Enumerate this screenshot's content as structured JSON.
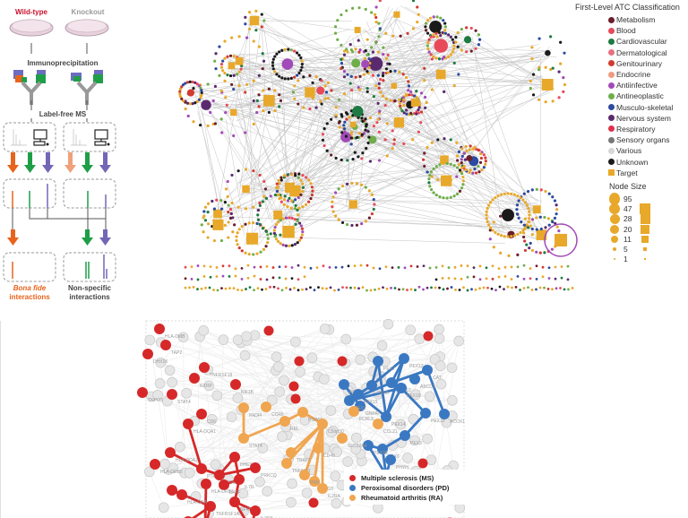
{
  "workflow": {
    "wildtype_label": "Wild-type",
    "knockout_label": "Knockout",
    "step1": "Immunoprecipitation",
    "step2": "Label-free MS",
    "result_left_line1": "Bona fide",
    "result_left_line2": "interactions",
    "result_right_line1": "Non-specific",
    "result_right_line2": "interactions",
    "colors": {
      "orange": "#e8631c",
      "light_orange": "#f0a07a",
      "green": "#1f9e48",
      "purple": "#7267b6",
      "red_label": "#c8102e",
      "gray_label": "#9a9a9a"
    }
  },
  "atc_legend": {
    "title": "First-Level ATC Classification",
    "items": [
      {
        "label": "Metabolism",
        "color": "#6b1e2a",
        "shape": "circle"
      },
      {
        "label": "Blood",
        "color": "#e84a5a",
        "shape": "circle"
      },
      {
        "label": "Cardiovascular",
        "color": "#1e7a42",
        "shape": "circle"
      },
      {
        "label": "Dermatological",
        "color": "#e87080",
        "shape": "circle"
      },
      {
        "label": "Genitourinary",
        "color": "#d23a30",
        "shape": "circle"
      },
      {
        "label": "Endocrine",
        "color": "#f09a80",
        "shape": "circle"
      },
      {
        "label": "Antiinfective",
        "color": "#a24ab8",
        "shape": "circle"
      },
      {
        "label": "Antineoplastic",
        "color": "#6fae4a",
        "shape": "circle"
      },
      {
        "label": "Musculo-skeletal",
        "color": "#2c4aa0",
        "shape": "circle"
      },
      {
        "label": "Nervous system",
        "color": "#5a2a6e",
        "shape": "circle"
      },
      {
        "label": "Respiratory",
        "color": "#e0304a",
        "shape": "circle"
      },
      {
        "label": "Sensory organs",
        "color": "#777777",
        "shape": "circle"
      },
      {
        "label": "Various",
        "color": "#d6d6d6",
        "shape": "circle"
      },
      {
        "label": "Unknown",
        "color": "#1a1a1a",
        "shape": "circle"
      },
      {
        "label": "Target",
        "color": "#e8a82a",
        "shape": "square"
      }
    ]
  },
  "node_size_legend": {
    "title": "Node Size",
    "rows": [
      {
        "value": "95",
        "circle": 14,
        "square": 0
      },
      {
        "value": "47",
        "circle": 12,
        "square": 12
      },
      {
        "value": "28",
        "circle": 11,
        "square": 11
      },
      {
        "value": "20",
        "circle": 10,
        "square": 10
      },
      {
        "value": "11",
        "circle": 8,
        "square": 8
      },
      {
        "value": "5",
        "circle": 4,
        "square": 4
      },
      {
        "value": "1",
        "circle": 2,
        "square": 2
      }
    ],
    "color": "#e8a82a"
  },
  "disease_legend": {
    "items": [
      {
        "label": "Multiple sclerosis (MS)",
        "color": "#d62828"
      },
      {
        "label": "Peroxisomal disorders (PD)",
        "color": "#3a78c2"
      },
      {
        "label": "Rheumatoid arthritis (RA)",
        "color": "#f0a550"
      }
    ]
  },
  "disease_network": {
    "ms_nodes": [
      "HLA-DQA1",
      "HLA-DQA2",
      "PTPRC",
      "VCAM1",
      "HHEX",
      "PRKCQ",
      "IL7R",
      "BATF",
      "NFKBIL1",
      "IL2RA",
      "PTK2",
      "TNFRSF1A",
      "MAPK3",
      "HLA-B",
      "HLA-C",
      "HLA-DRA",
      "HLA-DRB1",
      "HLA-DRB5",
      "HLA-DMB",
      "TAP2",
      "DHX16",
      "RXRP",
      "KIF1B",
      "TNFRSF18",
      "TNPO3",
      "CD6",
      "STAT4",
      "FCRL3",
      "CD58",
      "MERTK",
      "IL12A",
      "ANKRD55"
    ],
    "pd_nodes": [
      "AGPS",
      "GNPAT",
      "PEX2",
      "PEX12",
      "CAT",
      "PEX5",
      "PEX10",
      "ABCD1",
      "PEX19",
      "PEX7",
      "PEX14",
      "PEX13",
      "PEX16",
      "ACOX1",
      "PEX3",
      "PEX6",
      "PEX26",
      "PEX1",
      "PHYH"
    ],
    "ra_nodes": [
      "PADI4",
      "STAT4",
      "CCR6",
      "REL",
      "HSPA6",
      "C5orf30",
      "TRAF1",
      "CD40",
      "OLIG3",
      "TNFAIP3",
      "PRKL",
      "IL2RA",
      "FCRL3",
      "CCL21",
      "SLC22A4",
      "APOM",
      "RSBN1",
      "FAM107A",
      "TNFSF14",
      "PTPN22"
    ],
    "other_labels": [
      "ADRA1B",
      "SLC1SA2",
      "CFB",
      "PHF19",
      "C2",
      "AHI1",
      "BAG6",
      "FAM167A"
    ]
  }
}
